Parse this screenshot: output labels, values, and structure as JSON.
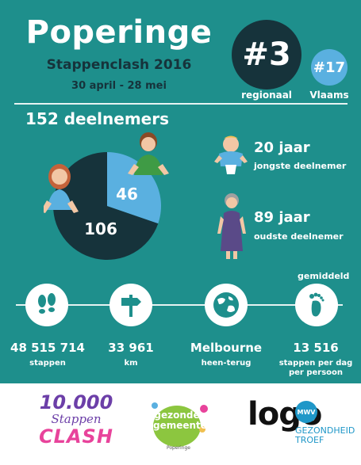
{
  "header": {
    "title": "Poperinge",
    "subtitle": "Stappenclash 2016",
    "dates": "30 april - 28 mei",
    "regional_rank": "#3",
    "regional_label": "regionaal",
    "flemish_rank": "#17",
    "flemish_label": "Vlaams"
  },
  "participants": {
    "total_label": "152 deelnemers",
    "pie_values": [
      106,
      46
    ],
    "pie_labels": [
      "106",
      "46"
    ],
    "colors": {
      "dark": "#16333b",
      "light": "#5ab0e0"
    }
  },
  "ages": {
    "youngest_value": "20 jaar",
    "youngest_label": "jongste deelnemer",
    "oldest_value": "89 jaar",
    "oldest_label": "oudste deelnemer"
  },
  "stats": {
    "average_label": "gemiddeld",
    "items": [
      {
        "icon": "footprints-icon",
        "value": "48 515 714",
        "label": "stappen"
      },
      {
        "icon": "signpost-icon",
        "value": "33 961",
        "label": "km"
      },
      {
        "icon": "globe-icon",
        "value": "Melbourne",
        "label": "heen-terug"
      },
      {
        "icon": "foot-icon",
        "value": "13 516",
        "label": "stappen per dag",
        "label2": "per persoon"
      }
    ]
  },
  "footer": {
    "logo1_line1": "10.000",
    "logo1_line2": "Stappen",
    "logo1_line3": "CLASH",
    "logo2_line1": "gezonde",
    "logo2_line2": "gemeente",
    "logo2_line3": "Poperinge",
    "logo3_main": "logo",
    "logo3_badge": "MWV",
    "logo3_line1": "GEZONDHEID",
    "logo3_line2": "TROEF"
  }
}
